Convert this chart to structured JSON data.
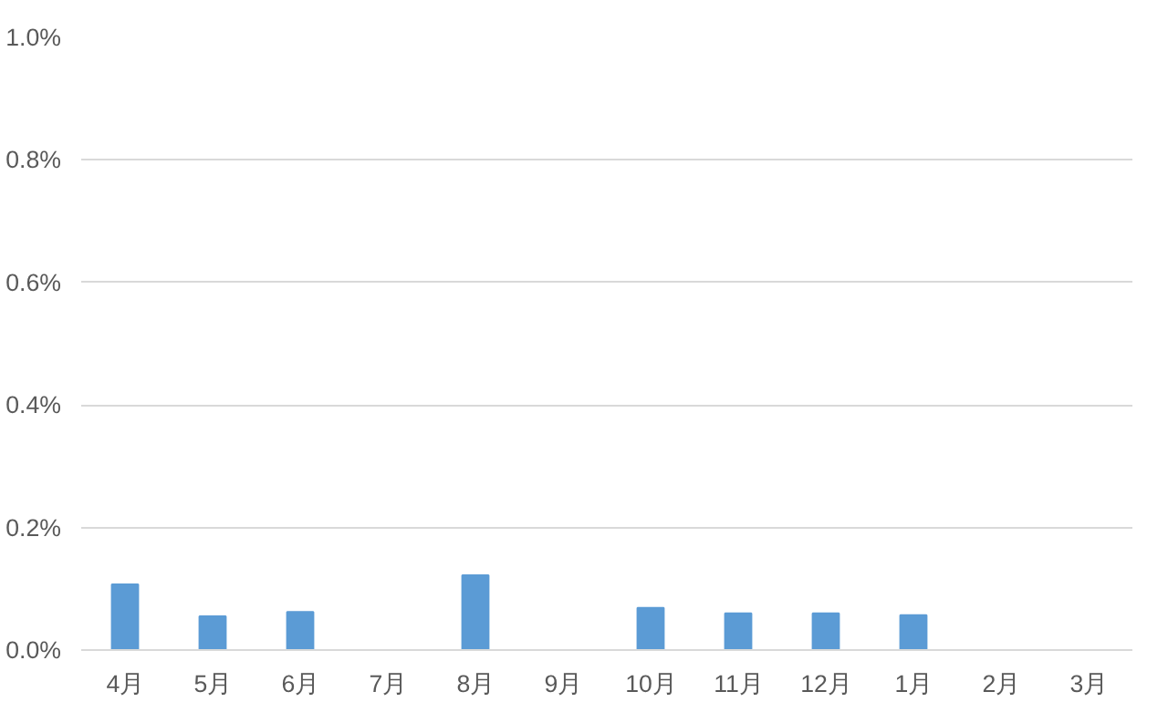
{
  "chart_data": {
    "type": "bar",
    "categories": [
      "4月",
      "5月",
      "6月",
      "7月",
      "8月",
      "9月",
      "10月",
      "11月",
      "12月",
      "1月",
      "2月",
      "3月"
    ],
    "values": [
      0.107,
      0.055,
      0.062,
      0,
      0.122,
      0,
      0.069,
      0.06,
      0.06,
      0.057,
      0,
      0
    ],
    "color": "#5b9bd5",
    "ylim": [
      0,
      1.0
    ],
    "yticks": [
      {
        "value": 0,
        "label": "0.0%"
      },
      {
        "value": 0.2,
        "label": "0.2%"
      },
      {
        "value": 0.4,
        "label": "0.4%"
      },
      {
        "value": 0.6,
        "label": "0.6%"
      },
      {
        "value": 0.8,
        "label": "0.8%"
      },
      {
        "value": 1.0,
        "label": "1.0%"
      }
    ],
    "grid": "y"
  }
}
